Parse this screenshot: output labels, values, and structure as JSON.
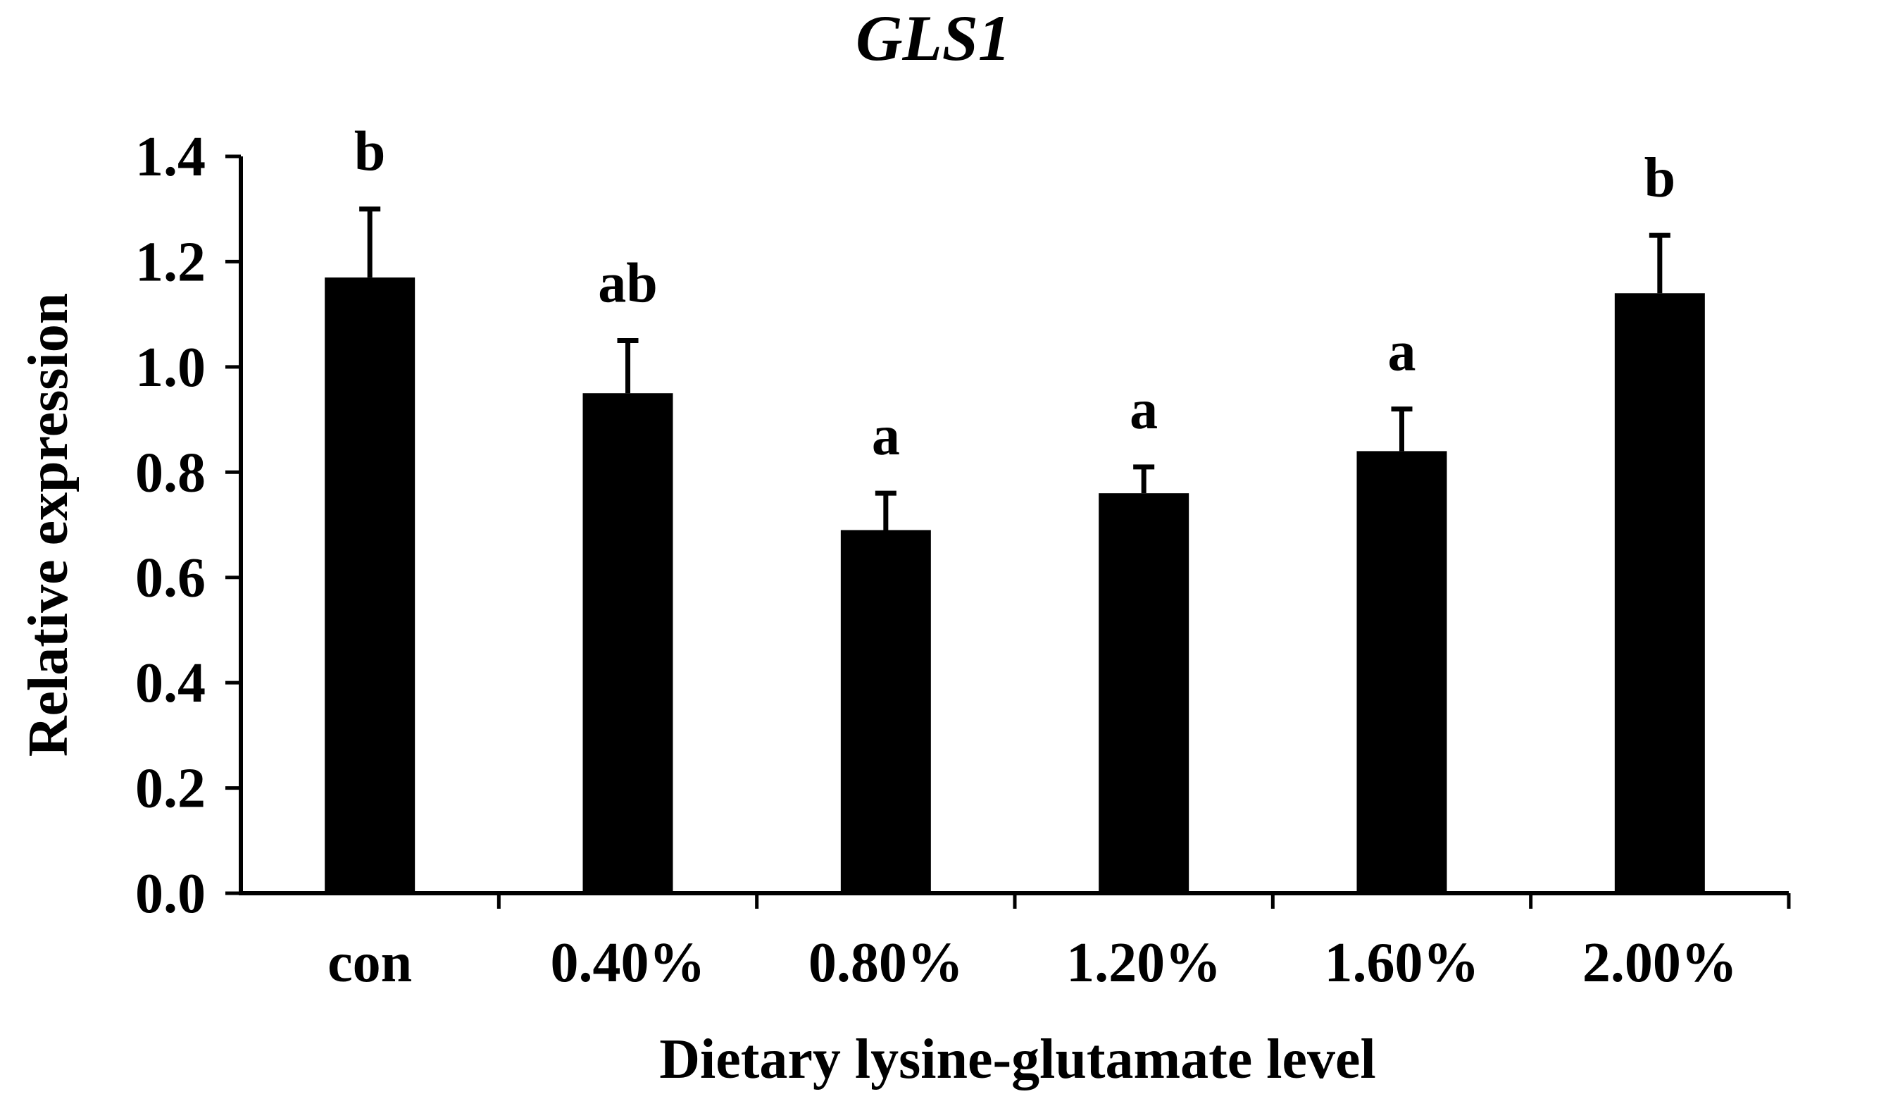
{
  "chart_data": {
    "type": "bar",
    "title": "GLS1",
    "xlabel": "Dietary lysine-glutamate level",
    "ylabel": "Relative expression",
    "ylim": [
      0,
      1.4
    ],
    "yticks": [
      "0.0",
      "0.2",
      "0.4",
      "0.6",
      "0.8",
      "1.0",
      "1.2",
      "1.4"
    ],
    "grid": false,
    "categories": [
      "con",
      "0.40%",
      "0.80%",
      "1.20%",
      "1.60%",
      "2.00%"
    ],
    "values": [
      1.17,
      0.95,
      0.69,
      0.76,
      0.84,
      1.14
    ],
    "errors": [
      0.13,
      0.1,
      0.07,
      0.05,
      0.08,
      0.11
    ],
    "significance": [
      "b",
      "ab",
      "a",
      "a",
      "a",
      "b"
    ],
    "bar_color": "#000000"
  }
}
